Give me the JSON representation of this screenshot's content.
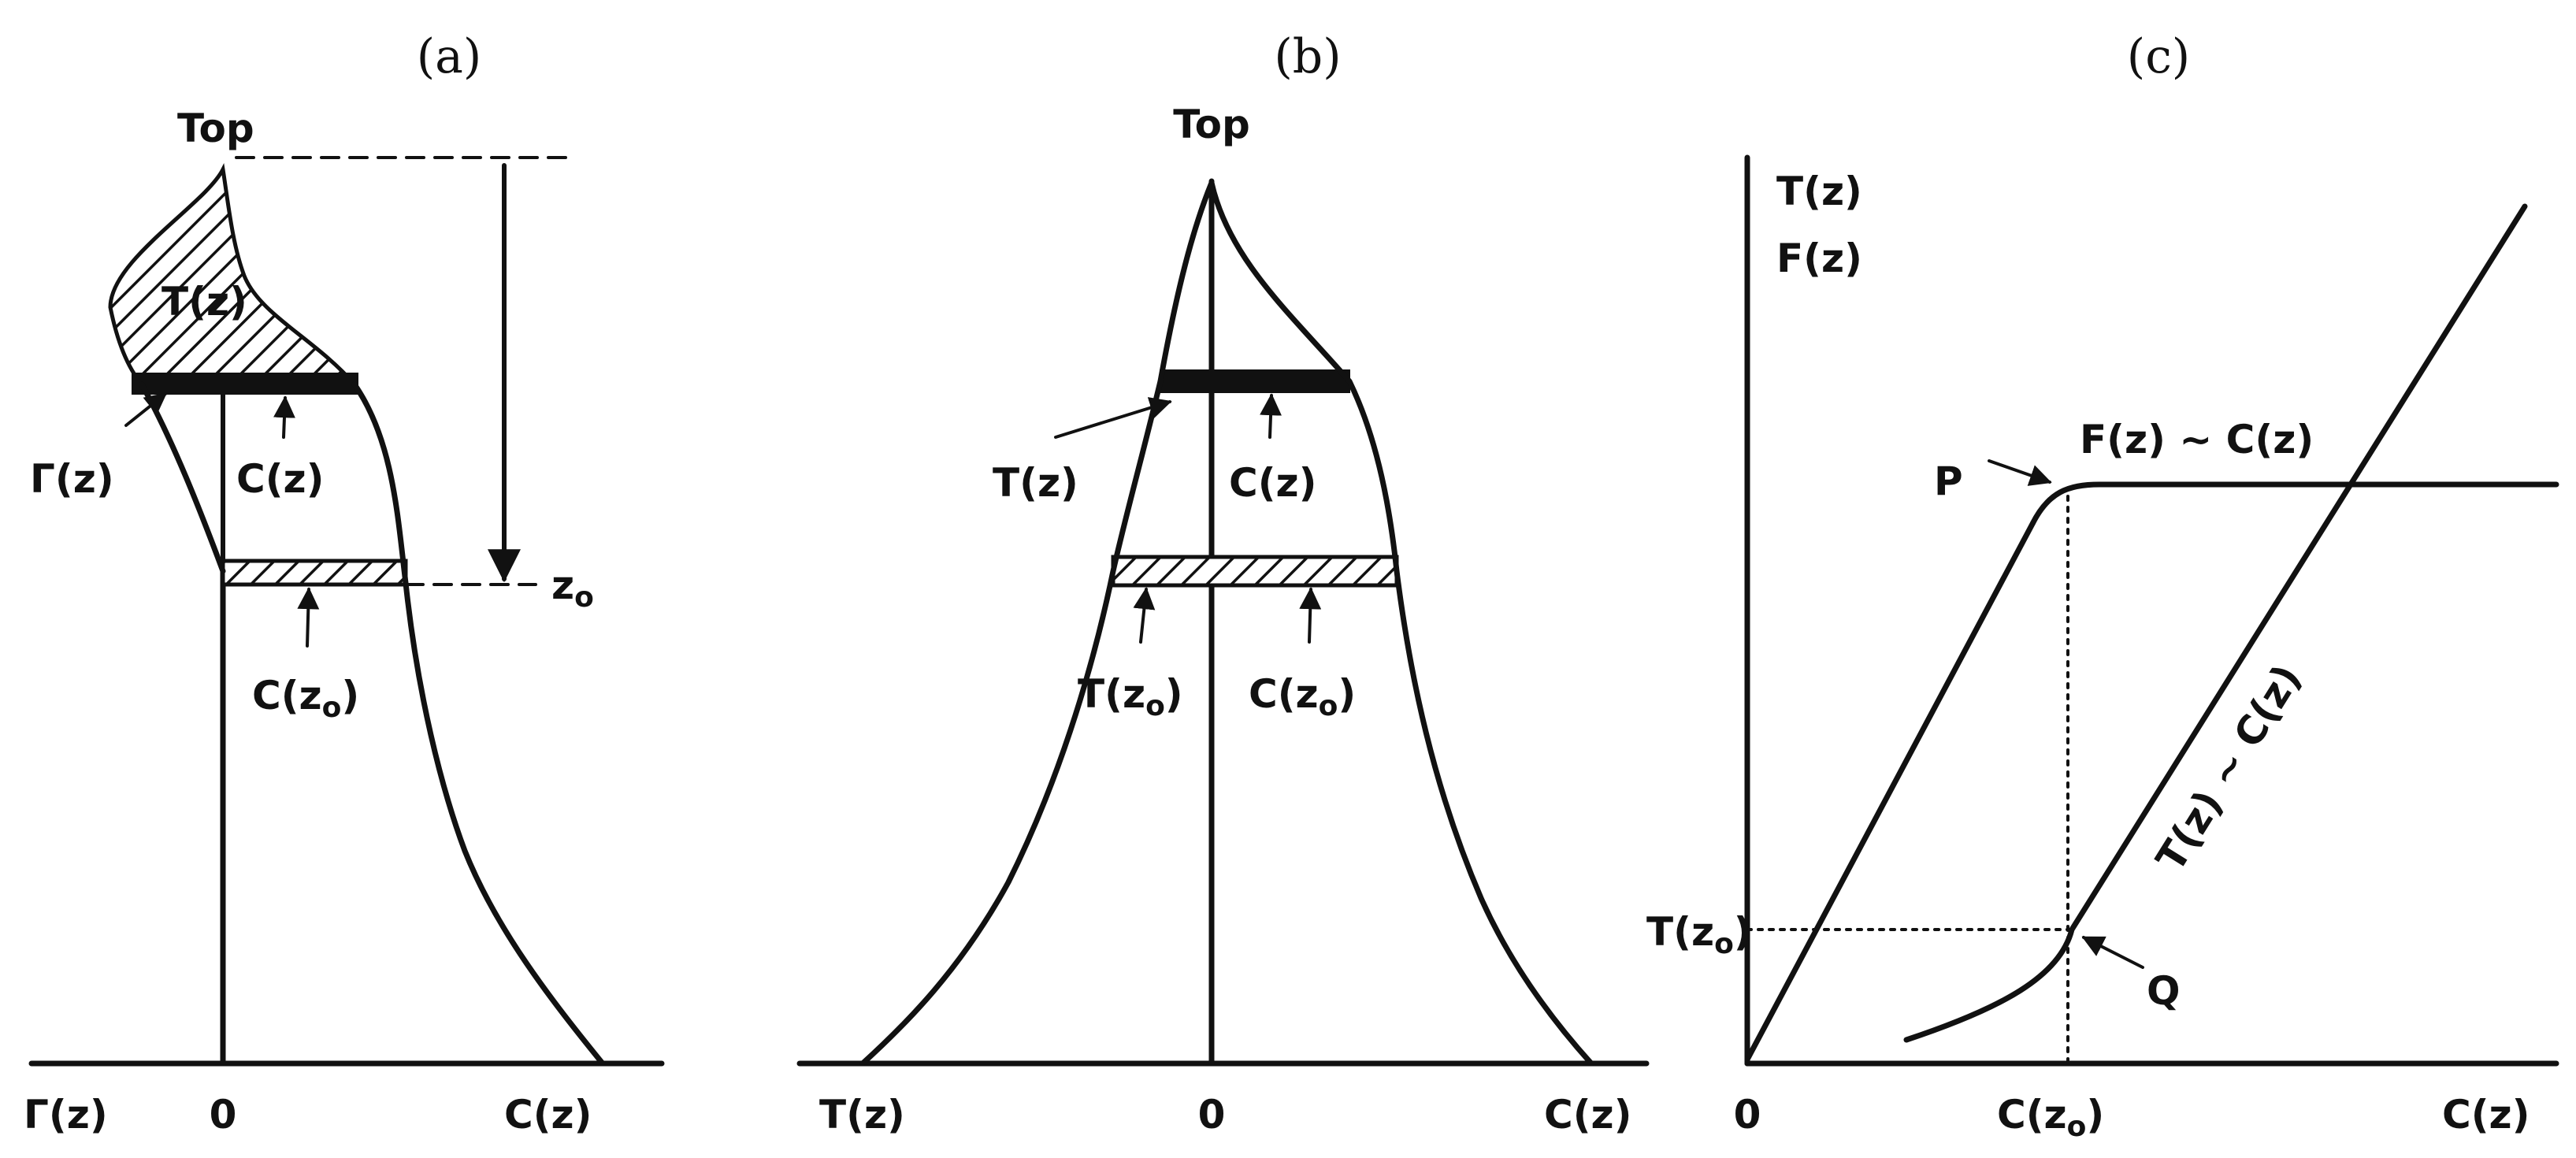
{
  "panel_a": {
    "caption": "(a)",
    "top_label": "Top",
    "shaded_label": "T(z)",
    "gamma_label": "Γ(z)",
    "c_label": "C(z)",
    "z0_label": "z",
    "z0_sub": "o",
    "c_z0_label": "C(z",
    "c_z0_sub": "o",
    "c_z0_close": ")",
    "x_left": "Γ(z)",
    "x_zero": "0",
    "x_right": "C(z)"
  },
  "panel_b": {
    "caption": "(b)",
    "top_label": "Top",
    "t_label": "T(z)",
    "c_label": "C(z)",
    "t_z0_label": "T(z",
    "t_z0_sub": "o",
    "t_z0_close": ")",
    "c_z0_label": "C(z",
    "c_z0_sub": "o",
    "c_z0_close": ")",
    "x_left": "T(z)",
    "x_zero": "0",
    "x_right": "C(z)"
  },
  "panel_c": {
    "caption": "(c)",
    "y_label_1": "T(z)",
    "y_label_2": "F(z)",
    "f_curve_label": "F(z) ~ C(z)",
    "t_curve_label": "T(z) ~ C(z)",
    "p_label": "P",
    "q_label": "Q",
    "t_z0_label": "T(z",
    "t_z0_sub": "o",
    "t_z0_close": ")",
    "x_zero": "0",
    "x_c_z0": "C(z",
    "x_c_z0_sub": "o",
    "x_c_z0_close": ")",
    "x_right": "C(z)"
  }
}
